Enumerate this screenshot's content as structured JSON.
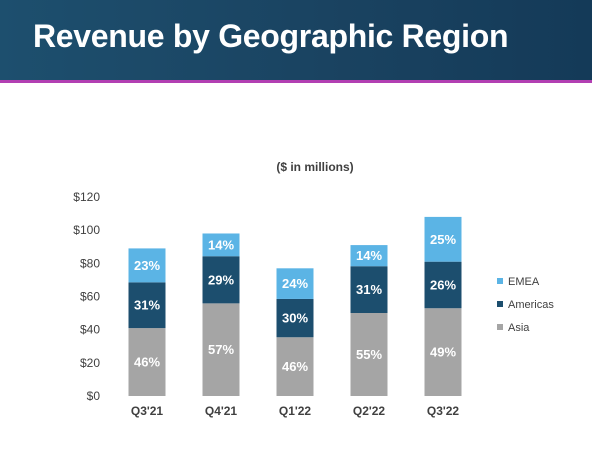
{
  "header": {
    "title": "Revenue by Geographic Region"
  },
  "colors": {
    "header_bg": "#1a4361",
    "accent_line": "#b23fb2",
    "emea": "#5bb4e5",
    "americas": "#1c4e6e",
    "asia": "#a5a5a5"
  },
  "chart_data": {
    "type": "bar",
    "stacked": true,
    "subtitle": "($ in millions)",
    "categories": [
      "Q3'21",
      "Q4'21",
      "Q1'22",
      "Q2'22",
      "Q3'22"
    ],
    "ylim": [
      0,
      120
    ],
    "yticks": [
      0,
      20,
      40,
      60,
      80,
      100,
      120
    ],
    "ytick_labels": [
      "$0",
      "$20",
      "$40",
      "$60",
      "$80",
      "$100",
      "$120"
    ],
    "totals": [
      89,
      98,
      77,
      91,
      108
    ],
    "series": [
      {
        "name": "Asia",
        "color": "#a5a5a5",
        "labels": [
          "46%",
          "57%",
          "46%",
          "55%",
          "49%"
        ],
        "percent": [
          46,
          57,
          46,
          55,
          49
        ]
      },
      {
        "name": "Americas",
        "color": "#1c4e6e",
        "labels": [
          "31%",
          "29%",
          "30%",
          "31%",
          "26%"
        ],
        "percent": [
          31,
          29,
          30,
          31,
          26
        ]
      },
      {
        "name": "EMEA",
        "color": "#5bb4e5",
        "labels": [
          "23%",
          "14%",
          "24%",
          "14%",
          "25%"
        ],
        "percent": [
          23,
          14,
          24,
          14,
          25
        ]
      }
    ],
    "legend": {
      "placement": "right",
      "order": [
        "EMEA",
        "Americas",
        "Asia"
      ]
    },
    "grid": false
  }
}
